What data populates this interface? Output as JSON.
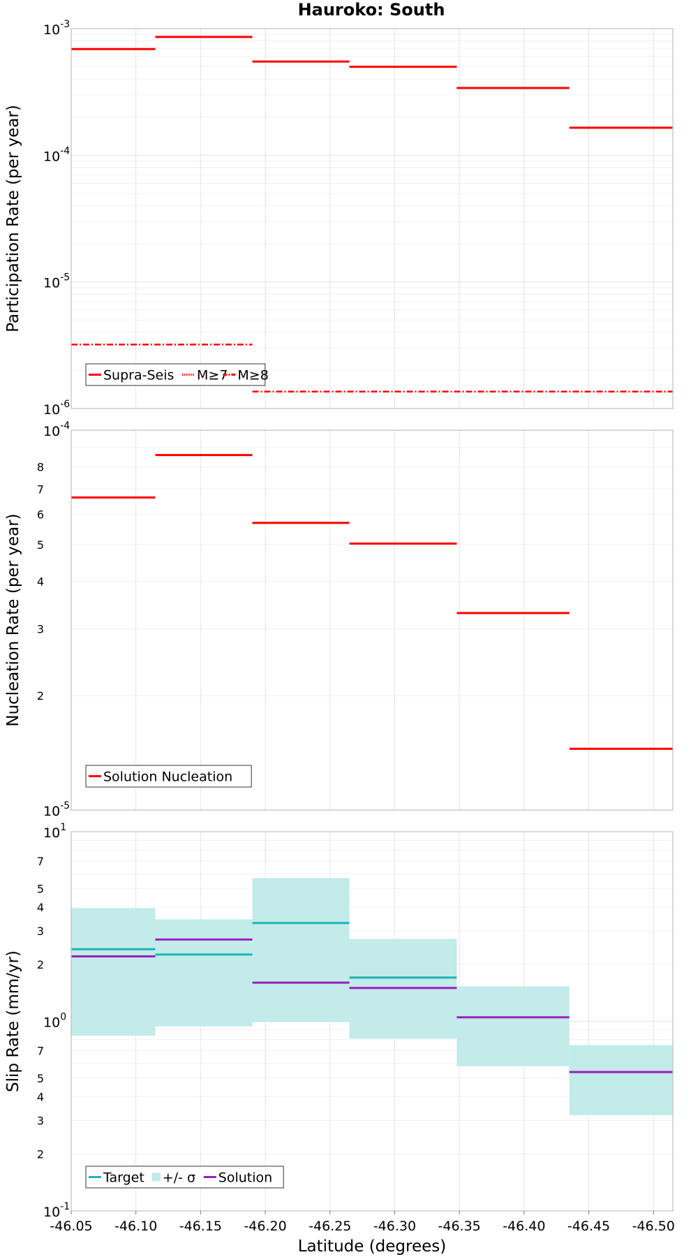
{
  "title": "Hauroko: South",
  "colors": {
    "red": "#ff0000",
    "target": "#1fb3b3",
    "band": "#c2ebea",
    "solution": "#9a1fbd"
  },
  "chart_data": [
    {
      "type": "line",
      "panel": "participation",
      "ylabel": "Participation Rate (per year)",
      "yscale": "log",
      "ylim": [
        1e-06,
        0.001
      ],
      "major_ticks": [
        {
          "value": 1e-06,
          "base": "10",
          "exp": "-6"
        },
        {
          "value": 1e-05,
          "base": "10",
          "exp": "-5"
        },
        {
          "value": 0.0001,
          "base": "10",
          "exp": "-4"
        },
        {
          "value": 0.001,
          "base": "10",
          "exp": "-3"
        }
      ],
      "legend": [
        "Supra-Seis",
        "M≥7",
        "M≥8"
      ],
      "series": [
        {
          "name": "Supra-Seis",
          "style": "solid",
          "segments": [
            {
              "x0": -46.05,
              "x1": -46.115,
              "y": 0.00069
            },
            {
              "x0": -46.115,
              "x1": -46.19,
              "y": 0.00086
            },
            {
              "x0": -46.19,
              "x1": -46.265,
              "y": 0.00055
            },
            {
              "x0": -46.265,
              "x1": -46.348,
              "y": 0.0005
            },
            {
              "x0": -46.348,
              "x1": -46.435,
              "y": 0.00034
            },
            {
              "x0": -46.435,
              "x1": -46.515,
              "y": 0.000165
            }
          ]
        },
        {
          "name": "M≥7",
          "style": "dotted",
          "segments": [
            {
              "x0": -46.05,
              "x1": -46.115,
              "y": 0.00069
            },
            {
              "x0": -46.115,
              "x1": -46.19,
              "y": 0.00086
            },
            {
              "x0": -46.19,
              "x1": -46.265,
              "y": 0.00055
            },
            {
              "x0": -46.265,
              "x1": -46.348,
              "y": 0.0005
            },
            {
              "x0": -46.348,
              "x1": -46.435,
              "y": 0.00034
            },
            {
              "x0": -46.435,
              "x1": -46.515,
              "y": 0.000165
            }
          ]
        },
        {
          "name": "M≥8",
          "style": "dashdot",
          "segments": [
            {
              "x0": -46.05,
              "x1": -46.19,
              "y": 3.2e-06
            },
            {
              "x0": -46.19,
              "x1": -46.515,
              "y": 1.36e-06
            }
          ]
        }
      ]
    },
    {
      "type": "line",
      "panel": "nucleation",
      "ylabel": "Nucleation Rate (per year)",
      "yscale": "log",
      "ylim": [
        1e-05,
        0.0001
      ],
      "major_ticks": [
        {
          "value": 1e-05,
          "base": "10",
          "exp": "-5"
        },
        {
          "value": 0.0001,
          "base": "10",
          "exp": "-4"
        }
      ],
      "minor_ticks": [
        {
          "value": 2e-05,
          "label": "2"
        },
        {
          "value": 3e-05,
          "label": "3"
        },
        {
          "value": 4e-05,
          "label": "4"
        },
        {
          "value": 5e-05,
          "label": "5"
        },
        {
          "value": 6e-05,
          "label": "6"
        },
        {
          "value": 7e-05,
          "label": "7"
        },
        {
          "value": 8e-05,
          "label": "8"
        }
      ],
      "legend": [
        "Solution Nucleation"
      ],
      "series": [
        {
          "name": "Solution Nucleation",
          "style": "solid",
          "segments": [
            {
              "x0": -46.05,
              "x1": -46.115,
              "y": 6.65e-05
            },
            {
              "x0": -46.115,
              "x1": -46.19,
              "y": 8.6e-05
            },
            {
              "x0": -46.19,
              "x1": -46.265,
              "y": 5.7e-05
            },
            {
              "x0": -46.265,
              "x1": -46.348,
              "y": 5.03e-05
            },
            {
              "x0": -46.348,
              "x1": -46.435,
              "y": 3.3e-05
            },
            {
              "x0": -46.435,
              "x1": -46.515,
              "y": 1.45e-05
            }
          ]
        }
      ]
    },
    {
      "type": "line",
      "panel": "slip",
      "ylabel": "Slip Rate (mm/yr)",
      "xlabel": "Latitude (degrees)",
      "yscale": "log",
      "ylim": [
        0.1,
        10
      ],
      "major_ticks": [
        {
          "value": 0.1,
          "base": "10",
          "exp": "-1"
        },
        {
          "value": 1,
          "base": "10",
          "exp": "0"
        },
        {
          "value": 10,
          "base": "10",
          "exp": "1"
        }
      ],
      "minor_ticks": [
        {
          "value": 0.2,
          "label": "2"
        },
        {
          "value": 0.3,
          "label": "3"
        },
        {
          "value": 0.4,
          "label": "4"
        },
        {
          "value": 0.5,
          "label": "5"
        },
        {
          "value": 0.7,
          "label": "7"
        },
        {
          "value": 2,
          "label": "2"
        },
        {
          "value": 3,
          "label": "3"
        },
        {
          "value": 4,
          "label": "4"
        },
        {
          "value": 5,
          "label": "5"
        },
        {
          "value": 7,
          "label": "7"
        }
      ],
      "xlim": [
        -46.05,
        -46.515
      ],
      "x_ticks": [
        "-46.05",
        "-46.10",
        "-46.15",
        "-46.20",
        "-46.25",
        "-46.30",
        "-46.35",
        "-46.40",
        "-46.45",
        "-46.50"
      ],
      "legend": [
        "Target",
        "+/- σ",
        "Solution"
      ],
      "series": [
        {
          "name": "+/- σ",
          "style": "band",
          "segments": [
            {
              "x0": -46.05,
              "x1": -46.115,
              "lo": 0.84,
              "hi": 3.95
            },
            {
              "x0": -46.115,
              "x1": -46.19,
              "lo": 0.94,
              "hi": 3.45
            },
            {
              "x0": -46.19,
              "x1": -46.265,
              "lo": 0.99,
              "hi": 5.7
            },
            {
              "x0": -46.265,
              "x1": -46.348,
              "lo": 0.81,
              "hi": 2.72
            },
            {
              "x0": -46.348,
              "x1": -46.435,
              "lo": 0.58,
              "hi": 1.53
            },
            {
              "x0": -46.435,
              "x1": -46.515,
              "lo": 0.32,
              "hi": 0.75
            }
          ]
        },
        {
          "name": "Target",
          "style": "solid",
          "segments": [
            {
              "x0": -46.05,
              "x1": -46.115,
              "y": 2.4
            },
            {
              "x0": -46.115,
              "x1": -46.19,
              "y": 2.25
            },
            {
              "x0": -46.19,
              "x1": -46.265,
              "y": 3.3
            },
            {
              "x0": -46.265,
              "x1": -46.348,
              "y": 1.7
            }
          ]
        },
        {
          "name": "Solution",
          "style": "solid",
          "segments": [
            {
              "x0": -46.05,
              "x1": -46.115,
              "y": 2.2
            },
            {
              "x0": -46.115,
              "x1": -46.19,
              "y": 2.7
            },
            {
              "x0": -46.19,
              "x1": -46.265,
              "y": 1.6
            },
            {
              "x0": -46.265,
              "x1": -46.348,
              "y": 1.5
            },
            {
              "x0": -46.348,
              "x1": -46.435,
              "y": 1.05
            },
            {
              "x0": -46.435,
              "x1": -46.515,
              "y": 0.54
            }
          ]
        }
      ]
    }
  ]
}
